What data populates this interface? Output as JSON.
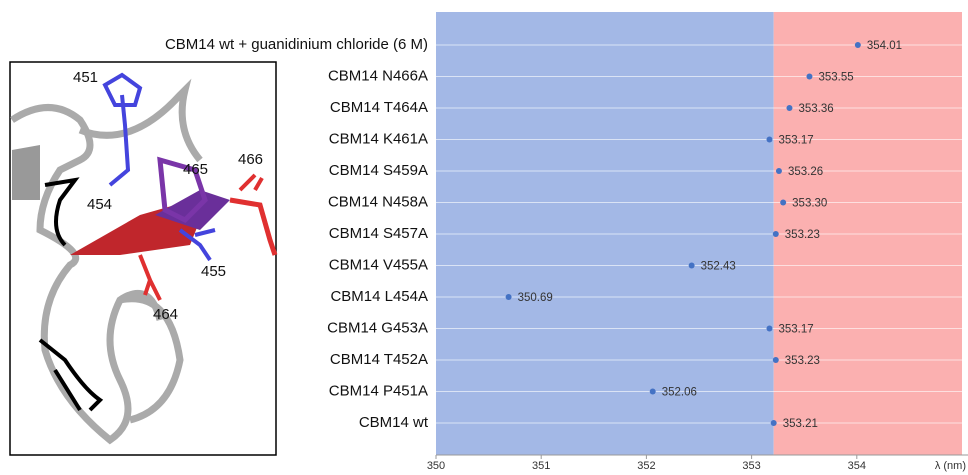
{
  "chart_data": {
    "type": "scatter",
    "categories": [
      "CBM14 wt + guanidinium chloride (6 M)",
      "CBM14 N466A",
      "CBM14 T464A",
      "CBM14 K461A",
      "CBM14 S459A",
      "CBM14 N458A",
      "CBM14 S457A",
      "CBM14 V455A",
      "CBM14 L454A",
      "CBM14 G453A",
      "CBM14 T452A",
      "CBM14 P451A",
      "CBM14 wt"
    ],
    "values": [
      354.01,
      353.55,
      353.36,
      353.17,
      353.26,
      353.3,
      353.23,
      352.43,
      350.69,
      353.17,
      353.23,
      352.06,
      353.21
    ],
    "value_labels": [
      "354.01",
      "353.55",
      "353.36",
      "353.17",
      "353.26",
      "353.30",
      "353.23",
      "352.43",
      "350.69",
      "353.17",
      "353.23",
      "352.06",
      "353.21"
    ],
    "color": "#4472c4",
    "xlim": [
      350,
      355
    ],
    "xticks": [
      350,
      351,
      352,
      353,
      354
    ],
    "xlabel": "λ (nm)",
    "grid": true,
    "regions": [
      {
        "from": 350,
        "to": 353.21,
        "color": "#a3b8e6"
      },
      {
        "from": 353.21,
        "to": 355,
        "color": "#fbb0b0"
      }
    ]
  },
  "structure": {
    "labels": [
      "451",
      "465",
      "466",
      "454",
      "455",
      "464"
    ]
  }
}
